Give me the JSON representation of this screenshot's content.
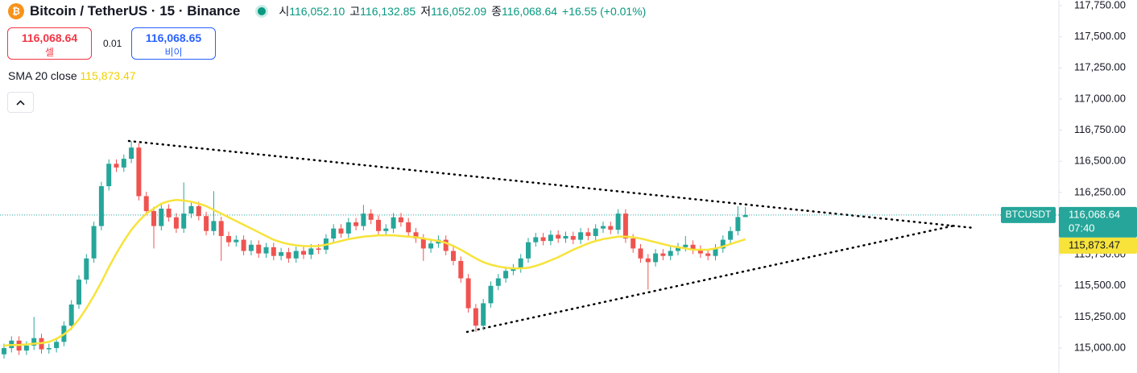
{
  "header": {
    "symbol_title": "Bitcoin / TetherUS · 15 · Binance",
    "open_label": "시",
    "open": "116,052.10",
    "high_label": "고",
    "high": "116,132.85",
    "low_label": "저",
    "low": "116,052.09",
    "close_label": "종",
    "change": "+16.55 (+0.01%)"
  },
  "trade": {
    "sell_label": "셀",
    "quantity": "0.01",
    "buy_price": "116,068.65",
    "buy_label": "비이"
  },
  "chart_data": {
    "type": "candlestick",
    "symbol": "BTCUSDT",
    "countdown": "07:40",
    "up_color": "#26a69a",
    "down_color": "#ef5350",
    "ylim": [
      114800,
      117795
    ],
    "yticks": [
      {
        "value": 115000,
        "label": "115,000.00"
      },
      {
        "value": 115250,
        "label": "115,250.00"
      },
      {
        "value": 115500,
        "label": "115,500.00"
      },
      {
        "value": 115750,
        "label": "115,750.00"
      },
      {
        "value": 116000,
        "label": "116,000.00"
      },
      {
        "value": 116250,
        "label": "116,250.00"
      },
      {
        "value": 116500,
        "label": "116,500.00"
      },
      {
        "value": 116750,
        "label": "116,750.00"
      },
      {
        "value": 117000,
        "label": "117,000.00"
      },
      {
        "value": 117250,
        "label": "117,250.00"
      },
      {
        "value": 117500,
        "label": "117,500.00"
      },
      {
        "value": 117750,
        "label": "117,750.00"
      }
    ],
    "grid": false,
    "last_price": {
      "value": 116068.64,
      "label": "116,068.64"
    },
    "open": [
      114950,
      115000,
      115060,
      114980,
      115020,
      115080,
      114990,
      115000,
      115050,
      115180,
      115350,
      115550,
      115720,
      115980,
      116300,
      116480,
      116450,
      116520,
      116610,
      116220,
      116100,
      115980,
      116120,
      116050,
      115960,
      116080,
      116140,
      116060,
      115940,
      116020,
      115900,
      115850,
      115870,
      115780,
      115830,
      115760,
      115810,
      115740,
      115770,
      115720,
      115780,
      115750,
      115800,
      115790,
      115880,
      115960,
      115920,
      116010,
      115980,
      116080,
      116030,
      115940,
      115960,
      116050,
      116010,
      115930,
      115880,
      115800,
      115840,
      115870,
      115780,
      115700,
      115560,
      115320,
      115180,
      115360,
      115500,
      115560,
      115620,
      115640,
      115720,
      115850,
      115890,
      115860,
      115910,
      115880,
      115900,
      115870,
      115930,
      115900,
      115960,
      115980,
      115950,
      116080,
      115880,
      115800,
      115720,
      115690,
      115760,
      115740,
      115780,
      115810,
      115830,
      115790,
      115760,
      115740,
      115800,
      115870,
      115940,
      116052.1
    ],
    "high": [
      115035,
      115095,
      115095,
      115055,
      115250,
      115115,
      115035,
      115085,
      115215,
      115385,
      115585,
      115755,
      116015,
      116335,
      116515,
      116515,
      116555,
      116663,
      116645,
      116255,
      116135,
      116155,
      116155,
      116085,
      116330,
      116175,
      116175,
      116095,
      116260,
      116055,
      115935,
      115905,
      115905,
      115865,
      115865,
      115845,
      115845,
      115805,
      115805,
      115815,
      115815,
      115835,
      115835,
      115915,
      115995,
      115995,
      116045,
      116045,
      116150,
      116115,
      116065,
      115995,
      116085,
      116085,
      116045,
      115965,
      115915,
      115875,
      115905,
      115905,
      115815,
      115735,
      115595,
      115355,
      115395,
      115535,
      115595,
      115655,
      115675,
      115755,
      115885,
      115925,
      115925,
      115945,
      115945,
      115935,
      115935,
      115965,
      115965,
      115995,
      116015,
      116015,
      116115,
      116115,
      115915,
      115835,
      115755,
      115795,
      115795,
      115815,
      115845,
      115900,
      115865,
      115825,
      115795,
      115835,
      115905,
      115975,
      116140,
      116132.85
    ],
    "low": [
      114915,
      114965,
      114945,
      114945,
      114985,
      114955,
      114955,
      114965,
      115015,
      115145,
      115315,
      115515,
      115685,
      115945,
      116265,
      116415,
      116415,
      116485,
      116185,
      116065,
      115800,
      115945,
      116015,
      115925,
      115925,
      116045,
      116025,
      115905,
      115905,
      115700,
      115815,
      115815,
      115745,
      115745,
      115725,
      115725,
      115705,
      115705,
      115685,
      115685,
      115715,
      115715,
      115755,
      115755,
      115845,
      115885,
      115885,
      115945,
      115945,
      115995,
      115905,
      115905,
      115925,
      115975,
      115895,
      115845,
      115700,
      115765,
      115805,
      115745,
      115665,
      115525,
      115285,
      115130,
      115145,
      115325,
      115465,
      115525,
      115585,
      115605,
      115685,
      115815,
      115825,
      115825,
      115845,
      115845,
      115835,
      115835,
      115865,
      115865,
      115925,
      115915,
      115915,
      115845,
      115765,
      115685,
      115470,
      115655,
      115705,
      115705,
      115745,
      115775,
      115755,
      115725,
      115705,
      115705,
      115765,
      115835,
      115905,
      116052.09
    ],
    "close": [
      115000,
      115060,
      114980,
      115020,
      115080,
      114990,
      115000,
      115050,
      115180,
      115350,
      115550,
      115720,
      115980,
      116300,
      116480,
      116450,
      116520,
      116610,
      116220,
      116100,
      115980,
      116120,
      116050,
      115960,
      116080,
      116140,
      116060,
      115940,
      116020,
      115900,
      115850,
      115870,
      115780,
      115830,
      115760,
      115810,
      115740,
      115770,
      115720,
      115780,
      115750,
      115800,
      115790,
      115880,
      115960,
      115920,
      116010,
      115980,
      116080,
      116030,
      115940,
      115960,
      116050,
      116010,
      115930,
      115880,
      115800,
      115840,
      115870,
      115780,
      115700,
      115560,
      115320,
      115180,
      115360,
      115500,
      115560,
      115620,
      115640,
      115720,
      115850,
      115890,
      115860,
      115910,
      115880,
      115900,
      115870,
      115930,
      115900,
      115960,
      115980,
      115950,
      116080,
      115880,
      115800,
      115720,
      115690,
      115760,
      115740,
      115780,
      115810,
      115830,
      115790,
      115760,
      115740,
      115800,
      115870,
      115940,
      116052.1,
      116068.64
    ],
    "sma": {
      "name": "SMA 20 close",
      "color": "#f7e33a",
      "last": {
        "value": 115873.47,
        "label": "115,873.47"
      },
      "values": [
        115020,
        115025,
        115025,
        115030,
        115035,
        115040,
        115050,
        115075,
        115110,
        115160,
        115230,
        115320,
        115420,
        115530,
        115650,
        115760,
        115860,
        115950,
        116020,
        116080,
        116120,
        116160,
        116180,
        116190,
        116185,
        116175,
        116160,
        116140,
        116110,
        116080,
        116050,
        116020,
        115990,
        115960,
        115930,
        115900,
        115870,
        115850,
        115835,
        115825,
        115820,
        115818,
        115820,
        115830,
        115845,
        115860,
        115875,
        115885,
        115895,
        115900,
        115905,
        115905,
        115905,
        115900,
        115895,
        115890,
        115880,
        115870,
        115860,
        115845,
        115820,
        115790,
        115755,
        115720,
        115690,
        115670,
        115655,
        115645,
        115640,
        115640,
        115645,
        115660,
        115680,
        115705,
        115730,
        115760,
        115790,
        115815,
        115840,
        115860,
        115875,
        115885,
        115895,
        115895,
        115890,
        115880,
        115865,
        115850,
        115835,
        115820,
        115810,
        115800,
        115790,
        115790,
        115790,
        115800,
        115815,
        115835,
        115855,
        115873.47
      ]
    }
  }
}
